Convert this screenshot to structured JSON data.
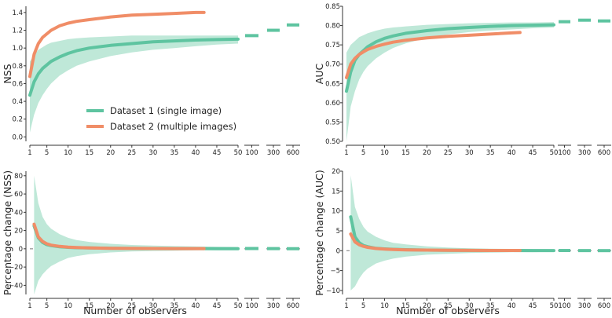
{
  "colors": {
    "dataset1": "#5ec4a0",
    "dataset1_band": "#bfe8d8",
    "dataset2": "#f08d67",
    "axis": "#333333",
    "zero_line": "#777777"
  },
  "legend": {
    "dataset1": "Dataset 1 (single image)",
    "dataset2": "Dataset 2 (multiple images)"
  },
  "xlabel": "Number of observers",
  "x_ticks": [
    1,
    5,
    10,
    15,
    20,
    25,
    30,
    35,
    40,
    45,
    50
  ],
  "x_ticks_tail": [
    100,
    300,
    600
  ],
  "chart_data": [
    {
      "type": "line",
      "id": "nss",
      "ylabel": "NSS",
      "ylim": [
        -0.05,
        1.47
      ],
      "yticks": [
        "0.0",
        "0.2",
        "0.4",
        "0.6",
        "0.8",
        "1.0",
        "1.2",
        "1.4"
      ],
      "ytick_values": [
        0.0,
        0.2,
        0.4,
        0.6,
        0.8,
        1.0,
        1.2,
        1.4
      ],
      "zero_line": false,
      "series": [
        {
          "name": "Dataset 1 (single image)",
          "x": [
            1,
            2,
            3,
            4,
            5,
            6,
            8,
            10,
            12,
            15,
            20,
            25,
            30,
            35,
            40,
            45,
            50
          ],
          "values": [
            0.47,
            0.62,
            0.71,
            0.77,
            0.81,
            0.85,
            0.9,
            0.94,
            0.97,
            1.0,
            1.03,
            1.05,
            1.07,
            1.08,
            1.09,
            1.095,
            1.1
          ],
          "band_low": [
            0.05,
            0.25,
            0.38,
            0.47,
            0.54,
            0.6,
            0.69,
            0.75,
            0.8,
            0.85,
            0.91,
            0.95,
            0.98,
            1.0,
            1.02,
            1.04,
            1.05
          ],
          "band_high": [
            0.85,
            0.92,
            0.98,
            1.01,
            1.04,
            1.06,
            1.08,
            1.1,
            1.11,
            1.12,
            1.13,
            1.14,
            1.14,
            1.14,
            1.14,
            1.14,
            1.14
          ],
          "tail": [
            1.14,
            1.2,
            1.26
          ]
        },
        {
          "name": "Dataset 2 (multiple images)",
          "x": [
            1,
            2,
            3,
            4,
            5,
            6,
            8,
            10,
            12,
            15,
            20,
            25,
            30,
            35,
            40,
            42
          ],
          "values": [
            0.68,
            0.93,
            1.05,
            1.12,
            1.16,
            1.2,
            1.25,
            1.28,
            1.3,
            1.32,
            1.35,
            1.37,
            1.38,
            1.39,
            1.4,
            1.4
          ]
        }
      ]
    },
    {
      "type": "line",
      "id": "auc",
      "ylabel": "AUC",
      "ylim": [
        0.5,
        0.85
      ],
      "yticks": [
        "0.50",
        "0.55",
        "0.60",
        "0.65",
        "0.70",
        "0.75",
        "0.80",
        "0.85"
      ],
      "ytick_values": [
        0.5,
        0.55,
        0.6,
        0.65,
        0.7,
        0.75,
        0.8,
        0.85
      ],
      "zero_line": false,
      "series": [
        {
          "name": "Dataset 1 (single image)",
          "x": [
            1,
            2,
            3,
            4,
            5,
            6,
            8,
            10,
            12,
            15,
            20,
            25,
            30,
            35,
            40,
            45,
            50
          ],
          "values": [
            0.63,
            0.68,
            0.71,
            0.725,
            0.735,
            0.745,
            0.758,
            0.767,
            0.773,
            0.78,
            0.787,
            0.792,
            0.795,
            0.798,
            0.8,
            0.801,
            0.802
          ],
          "band_low": [
            0.5,
            0.59,
            0.63,
            0.66,
            0.68,
            0.695,
            0.715,
            0.73,
            0.742,
            0.754,
            0.768,
            0.777,
            0.783,
            0.787,
            0.79,
            0.793,
            0.795
          ],
          "band_high": [
            0.73,
            0.75,
            0.76,
            0.77,
            0.775,
            0.78,
            0.787,
            0.792,
            0.795,
            0.798,
            0.802,
            0.804,
            0.806,
            0.807,
            0.808,
            0.808,
            0.809
          ],
          "tail": [
            0.81,
            0.814,
            0.812
          ]
        },
        {
          "name": "Dataset 2 (multiple images)",
          "x": [
            1,
            2,
            3,
            4,
            5,
            6,
            8,
            10,
            12,
            15,
            20,
            25,
            30,
            35,
            40,
            42
          ],
          "values": [
            0.665,
            0.7,
            0.715,
            0.725,
            0.732,
            0.738,
            0.746,
            0.752,
            0.757,
            0.762,
            0.768,
            0.772,
            0.775,
            0.778,
            0.781,
            0.782
          ]
        }
      ]
    },
    {
      "type": "line",
      "id": "nss_change",
      "ylabel": "Percentage change (NSS)",
      "ylim": [
        -50,
        85
      ],
      "yticks": [
        "−40",
        "−20",
        "0",
        "20",
        "40",
        "60",
        "80"
      ],
      "ytick_values": [
        -40,
        -20,
        0,
        20,
        40,
        60,
        80
      ],
      "zero_line": true,
      "series": [
        {
          "name": "Dataset 1 (single image)",
          "x": [
            2,
            3,
            4,
            5,
            6,
            8,
            10,
            12,
            15,
            20,
            25,
            30,
            35,
            40,
            45,
            50
          ],
          "values": [
            25,
            12,
            7,
            4.5,
            3.5,
            2.2,
            1.6,
            1.2,
            0.9,
            0.6,
            0.4,
            0.3,
            0.25,
            0.2,
            0.15,
            0.1
          ],
          "band_low": [
            -50,
            -35,
            -28,
            -23,
            -19,
            -14,
            -10,
            -8,
            -6,
            -4,
            -3,
            -2.5,
            -2,
            -1.5,
            -1.2,
            -1
          ],
          "band_high": [
            80,
            50,
            35,
            27,
            22,
            16,
            12,
            9.5,
            7.5,
            5.5,
            4.2,
            3.5,
            3,
            2.5,
            2.2,
            2
          ],
          "tail": [
            0.3,
            0.2,
            0.1
          ]
        },
        {
          "name": "Dataset 2 (multiple images)",
          "x": [
            2,
            3,
            4,
            5,
            6,
            8,
            10,
            12,
            15,
            20,
            25,
            30,
            35,
            40,
            42
          ],
          "values": [
            27,
            13,
            8,
            5.5,
            4,
            2.6,
            1.8,
            1.4,
            1.0,
            0.6,
            0.4,
            0.3,
            0.25,
            0.2,
            0.2
          ]
        }
      ]
    },
    {
      "type": "line",
      "id": "auc_change",
      "ylabel": "Percentage change (AUC)",
      "ylim": [
        -11,
        20
      ],
      "yticks": [
        "−10",
        "−5",
        "0",
        "5",
        "10",
        "15",
        "20"
      ],
      "ytick_values": [
        -10,
        -5,
        0,
        5,
        10,
        15,
        20
      ],
      "zero_line": true,
      "series": [
        {
          "name": "Dataset 1 (single image)",
          "x": [
            2,
            3,
            4,
            5,
            6,
            8,
            10,
            12,
            15,
            20,
            25,
            30,
            35,
            40,
            45,
            50
          ],
          "values": [
            8.5,
            3.5,
            2.0,
            1.3,
            1.0,
            0.6,
            0.45,
            0.35,
            0.25,
            0.15,
            0.1,
            0.08,
            0.06,
            0.05,
            0.04,
            0.03
          ],
          "band_low": [
            -10,
            -9,
            -7,
            -5.5,
            -4.5,
            -3.2,
            -2.5,
            -2,
            -1.5,
            -1,
            -0.8,
            -0.6,
            -0.5,
            -0.4,
            -0.35,
            -0.3
          ],
          "band_high": [
            19,
            11,
            8,
            6,
            4.8,
            3.5,
            2.6,
            2,
            1.6,
            1.1,
            0.8,
            0.6,
            0.5,
            0.45,
            0.4,
            0.35
          ],
          "tail": [
            0.05,
            0.03,
            0.02
          ]
        },
        {
          "name": "Dataset 2 (multiple images)",
          "x": [
            2,
            3,
            4,
            5,
            6,
            8,
            10,
            12,
            15,
            20,
            25,
            30,
            35,
            40,
            42
          ],
          "values": [
            4.2,
            2.2,
            1.5,
            1.1,
            0.85,
            0.55,
            0.4,
            0.3,
            0.22,
            0.15,
            0.1,
            0.08,
            0.06,
            0.05,
            0.05
          ]
        }
      ]
    }
  ]
}
